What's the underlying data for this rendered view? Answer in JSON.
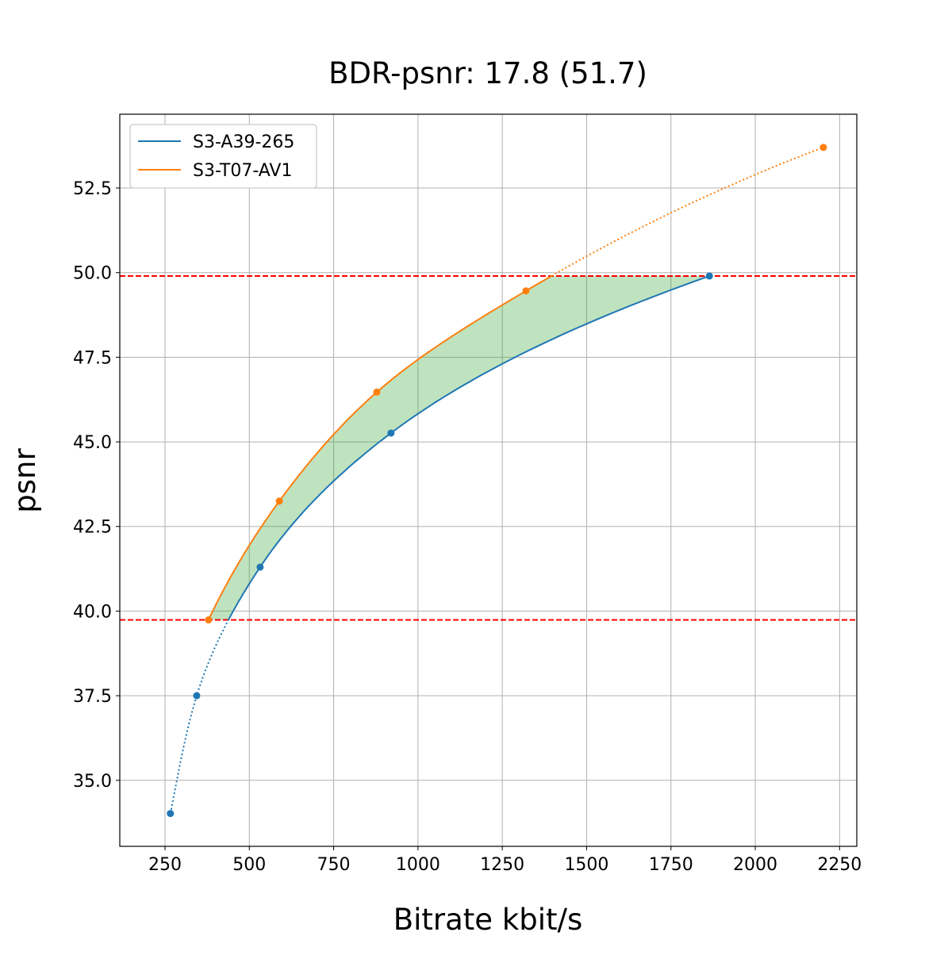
{
  "chart_data": {
    "type": "line",
    "title": "BDR-psnr: 17.8 (51.7)",
    "xlabel": "Bitrate kbit/s",
    "ylabel": "psnr",
    "xlim": [
      116,
      2301
    ],
    "ylim": [
      33.05,
      54.68
    ],
    "xticks": [
      250,
      500,
      750,
      1000,
      1250,
      1500,
      1750,
      2000,
      2250
    ],
    "yticks": [
      35.0,
      37.5,
      40.0,
      42.5,
      45.0,
      47.5,
      50.0,
      52.5
    ],
    "ytick_labels": [
      "35.0",
      "37.5",
      "40.0",
      "42.5",
      "45.0",
      "47.5",
      "50.0",
      "52.5"
    ],
    "grid": true,
    "legend_position": "top-left",
    "series": [
      {
        "name": "S3-A39-265",
        "color": "#1f77b4",
        "x": [
          266,
          344,
          532,
          920,
          1864
        ],
        "y": [
          34.02,
          37.5,
          41.3,
          45.26,
          49.9
        ]
      },
      {
        "name": "S3-T07-AV1",
        "color": "#ff7f0e",
        "x": [
          379,
          589,
          878,
          1320,
          2202
        ],
        "y": [
          39.74,
          43.25,
          46.47,
          49.46,
          53.7
        ]
      }
    ],
    "reference_lines": {
      "color": "#ff0000",
      "y": [
        49.9,
        39.74
      ]
    },
    "fill_color": "#2ca02c"
  }
}
